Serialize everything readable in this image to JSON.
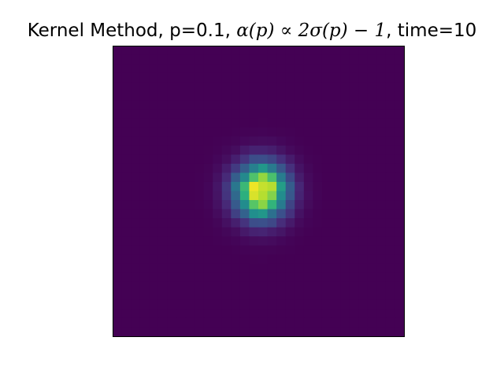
{
  "chart_data": {
    "type": "heatmap",
    "title": {
      "prefix": "Kernel Method, p=0.1, ",
      "alpha_expr": "α(p) ∝ 2σ(p) − 1",
      "suffix": ", time=10"
    },
    "xlabel": "",
    "ylabel": "",
    "colormap": "viridis",
    "grid": false,
    "axes_ticks": false,
    "resolution": [
      32,
      32
    ],
    "blob": {
      "center_col": 16.3,
      "center_row": 16.0,
      "sigma_cols": 2.0,
      "sigma_rows": 2.1,
      "peak": 1.0,
      "min": 0.0
    }
  },
  "colors": {
    "viridis_low": "#440154",
    "viridis_mid": "#21918c",
    "viridis_high": "#fde725",
    "axes_border": "#000000"
  }
}
